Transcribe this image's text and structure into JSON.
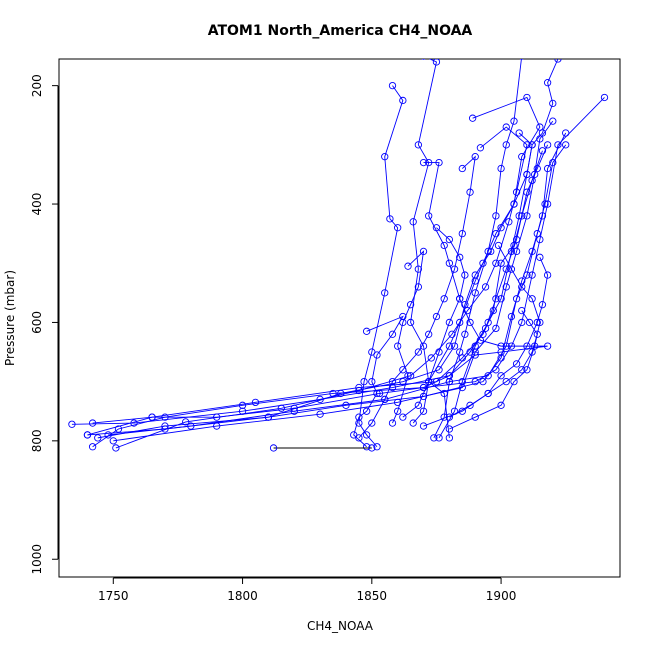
{
  "chart_data": {
    "type": "scatter",
    "title": "ATOM1 North_America CH4_NOAA",
    "xlabel": "CH4_NOAA",
    "ylabel": "Pressure (mbar)",
    "xlim": [
      1729,
      1946
    ],
    "ylim": [
      1030,
      155
    ],
    "y_reversed": true,
    "xticks": [
      1750,
      1800,
      1850,
      1900
    ],
    "yticks": [
      200,
      400,
      600,
      800,
      1000
    ],
    "grid": false,
    "series_color": "#0000ff",
    "highlight_color": "#000000",
    "profiles": [
      [
        [
          1858,
          200
        ],
        [
          1862,
          225
        ],
        [
          1855,
          320
        ],
        [
          1857,
          425
        ],
        [
          1860,
          440
        ],
        [
          1855,
          550
        ],
        [
          1850,
          650
        ],
        [
          1847,
          700
        ],
        [
          1845,
          770
        ],
        [
          1848,
          790
        ],
        [
          1852,
          810
        ]
      ],
      [
        [
          1870,
          150
        ],
        [
          1875,
          160
        ],
        [
          1868,
          300
        ],
        [
          1872,
          330
        ],
        [
          1866,
          430
        ],
        [
          1868,
          510
        ],
        [
          1865,
          600
        ],
        [
          1870,
          640
        ],
        [
          1872,
          700
        ],
        [
          1878,
          720
        ],
        [
          1880,
          795
        ]
      ],
      [
        [
          1908,
          150
        ],
        [
          1905,
          260
        ],
        [
          1902,
          300
        ],
        [
          1900,
          340
        ],
        [
          1898,
          420
        ],
        [
          1895,
          480
        ],
        [
          1890,
          550
        ],
        [
          1886,
          620
        ],
        [
          1884,
          650
        ],
        [
          1880,
          700
        ],
        [
          1878,
          760
        ],
        [
          1874,
          795
        ]
      ],
      [
        [
          1922,
          155
        ],
        [
          1918,
          195
        ],
        [
          1920,
          230
        ],
        [
          1916,
          280
        ],
        [
          1912,
          300
        ],
        [
          1910,
          350
        ],
        [
          1907,
          420
        ],
        [
          1904,
          480
        ],
        [
          1900,
          560
        ],
        [
          1895,
          600
        ],
        [
          1890,
          640
        ],
        [
          1885,
          700
        ],
        [
          1882,
          750
        ],
        [
          1876,
          795
        ]
      ],
      [
        [
          1940,
          220
        ],
        [
          1922,
          300
        ],
        [
          1918,
          400
        ],
        [
          1915,
          460
        ],
        [
          1912,
          520
        ],
        [
          1908,
          600
        ],
        [
          1904,
          640
        ],
        [
          1898,
          680
        ],
        [
          1890,
          700
        ],
        [
          1870,
          710
        ],
        [
          1835,
          720
        ],
        [
          1800,
          740
        ],
        [
          1770,
          760
        ],
        [
          1752,
          780
        ],
        [
          1742,
          810
        ]
      ],
      [
        [
          1925,
          300
        ],
        [
          1920,
          330
        ],
        [
          1917,
          400
        ],
        [
          1914,
          450
        ],
        [
          1910,
          520
        ],
        [
          1906,
          560
        ],
        [
          1902,
          640
        ],
        [
          1895,
          690
        ],
        [
          1880,
          700
        ],
        [
          1855,
          730
        ],
        [
          1820,
          750
        ],
        [
          1780,
          775
        ],
        [
          1748,
          790
        ]
      ],
      [
        [
          1925,
          280
        ],
        [
          1918,
          340
        ],
        [
          1916,
          420
        ],
        [
          1912,
          480
        ],
        [
          1908,
          530
        ],
        [
          1904,
          590
        ],
        [
          1900,
          660
        ],
        [
          1893,
          700
        ],
        [
          1870,
          725
        ],
        [
          1840,
          740
        ],
        [
          1810,
          760
        ],
        [
          1770,
          775
        ],
        [
          1744,
          795
        ]
      ],
      [
        [
          1920,
          260
        ],
        [
          1915,
          290
        ],
        [
          1913,
          350
        ],
        [
          1910,
          420
        ],
        [
          1906,
          480
        ],
        [
          1902,
          540
        ],
        [
          1898,
          610
        ],
        [
          1890,
          650
        ],
        [
          1885,
          710
        ],
        [
          1860,
          735
        ],
        [
          1830,
          755
        ],
        [
          1790,
          775
        ],
        [
          1750,
          800
        ]
      ],
      [
        [
          1916,
          310
        ],
        [
          1912,
          360
        ],
        [
          1908,
          420
        ],
        [
          1905,
          470
        ],
        [
          1900,
          500
        ],
        [
          1897,
          580
        ],
        [
          1893,
          620
        ],
        [
          1885,
          660
        ],
        [
          1875,
          700
        ],
        [
          1845,
          710
        ],
        [
          1805,
          735
        ],
        [
          1765,
          760
        ],
        [
          1740,
          790
        ]
      ],
      [
        [
          1918,
          300
        ],
        [
          1914,
          340
        ],
        [
          1910,
          380
        ],
        [
          1906,
          460
        ],
        [
          1902,
          510
        ],
        [
          1898,
          560
        ],
        [
          1894,
          610
        ],
        [
          1888,
          650
        ],
        [
          1880,
          690
        ],
        [
          1858,
          710
        ],
        [
          1830,
          730
        ],
        [
          1800,
          750
        ],
        [
          1758,
          770
        ],
        [
          1734,
          772
        ]
      ],
      [
        [
          1889,
          255
        ],
        [
          1910,
          220
        ],
        [
          1915,
          270
        ],
        [
          1908,
          320
        ],
        [
          1905,
          400
        ],
        [
          1900,
          440
        ],
        [
          1896,
          480
        ],
        [
          1890,
          520
        ],
        [
          1886,
          570
        ],
        [
          1882,
          640
        ],
        [
          1876,
          680
        ],
        [
          1862,
          700
        ],
        [
          1838,
          720
        ],
        [
          1810,
          760
        ],
        [
          1770,
          780
        ],
        [
          1740,
          790
        ]
      ],
      [
        [
          1892,
          305
        ],
        [
          1902,
          270
        ],
        [
          1910,
          300
        ],
        [
          1906,
          380
        ],
        [
          1903,
          430
        ],
        [
          1898,
          500
        ],
        [
          1894,
          540
        ],
        [
          1887,
          580
        ],
        [
          1881,
          620
        ],
        [
          1873,
          660
        ],
        [
          1865,
          690
        ],
        [
          1845,
          715
        ],
        [
          1815,
          745
        ],
        [
          1778,
          768
        ],
        [
          1751,
          812
        ]
      ],
      [
        [
          1870,
          330
        ],
        [
          1876,
          330
        ],
        [
          1872,
          420
        ],
        [
          1878,
          470
        ],
        [
          1880,
          500
        ],
        [
          1884,
          560
        ],
        [
          1888,
          600
        ],
        [
          1892,
          630
        ],
        [
          1900,
          640
        ],
        [
          1918,
          640
        ],
        [
          1900,
          650
        ],
        [
          1890,
          655
        ],
        [
          1880,
          690
        ],
        [
          1870,
          710
        ],
        [
          1853,
          720
        ],
        [
          1820,
          745
        ],
        [
          1790,
          760
        ],
        [
          1765,
          760
        ],
        [
          1742,
          770
        ]
      ],
      [
        [
          1848,
          615
        ],
        [
          1862,
          590
        ],
        [
          1858,
          620
        ],
        [
          1852,
          655
        ],
        [
          1850,
          700
        ],
        [
          1852,
          720
        ],
        [
          1848,
          750
        ],
        [
          1845,
          760
        ],
        [
          1843,
          790
        ],
        [
          1848,
          810
        ]
      ],
      [
        [
          1885,
          340
        ],
        [
          1890,
          320
        ],
        [
          1888,
          380
        ],
        [
          1885,
          450
        ],
        [
          1882,
          510
        ],
        [
          1878,
          560
        ],
        [
          1875,
          590
        ],
        [
          1872,
          620
        ],
        [
          1868,
          650
        ],
        [
          1862,
          680
        ],
        [
          1858,
          700
        ],
        [
          1855,
          730
        ],
        [
          1850,
          770
        ],
        [
          1845,
          795
        ]
      ],
      [
        [
          1907,
          280
        ],
        [
          1912,
          300
        ],
        [
          1910,
          350
        ],
        [
          1905,
          400
        ],
        [
          1898,
          450
        ],
        [
          1893,
          500
        ],
        [
          1890,
          530
        ],
        [
          1884,
          600
        ],
        [
          1880,
          640
        ],
        [
          1872,
          700
        ],
        [
          1870,
          750
        ],
        [
          1866,
          770
        ]
      ],
      [
        [
          1864,
          505
        ],
        [
          1870,
          480
        ],
        [
          1868,
          540
        ],
        [
          1865,
          570
        ],
        [
          1862,
          600
        ],
        [
          1860,
          640
        ],
        [
          1864,
          690
        ],
        [
          1860,
          750
        ],
        [
          1858,
          770
        ]
      ],
      [
        [
          1899,
          470
        ],
        [
          1904,
          510
        ],
        [
          1908,
          540
        ],
        [
          1912,
          560
        ],
        [
          1915,
          600
        ],
        [
          1913,
          640
        ],
        [
          1910,
          680
        ],
        [
          1905,
          700
        ],
        [
          1900,
          740
        ],
        [
          1890,
          760
        ],
        [
          1880,
          780
        ]
      ],
      [
        [
          1915,
          490
        ],
        [
          1918,
          520
        ],
        [
          1916,
          570
        ],
        [
          1914,
          600
        ],
        [
          1910,
          640
        ],
        [
          1906,
          670
        ],
        [
          1900,
          690
        ],
        [
          1895,
          720
        ],
        [
          1885,
          750
        ],
        [
          1870,
          775
        ]
      ],
      [
        [
          1875,
          440
        ],
        [
          1880,
          460
        ],
        [
          1884,
          490
        ],
        [
          1886,
          520
        ],
        [
          1884,
          560
        ],
        [
          1880,
          600
        ],
        [
          1876,
          650
        ],
        [
          1872,
          700
        ],
        [
          1868,
          740
        ],
        [
          1862,
          760
        ]
      ],
      [
        [
          1908,
          580
        ],
        [
          1911,
          600
        ],
        [
          1914,
          620
        ],
        [
          1912,
          650
        ],
        [
          1908,
          680
        ],
        [
          1902,
          700
        ],
        [
          1895,
          720
        ],
        [
          1888,
          740
        ],
        [
          1880,
          760
        ]
      ]
    ],
    "highlight_segment": [
      [
        1812,
        812
      ],
      [
        1850,
        812
      ]
    ]
  }
}
